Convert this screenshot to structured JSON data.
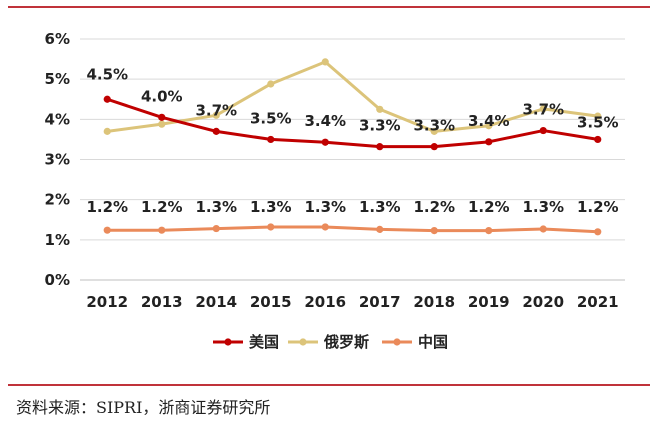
{
  "chart_data": {
    "type": "line",
    "categories": [
      "2012",
      "2013",
      "2014",
      "2015",
      "2016",
      "2017",
      "2018",
      "2019",
      "2020",
      "2021"
    ],
    "ylim": [
      0,
      6
    ],
    "yticks": [
      "0%",
      "1%",
      "2%",
      "3%",
      "4%",
      "5%",
      "6%"
    ],
    "grid": true,
    "legend_position": "bottom",
    "series": [
      {
        "name": "美国",
        "color": "#c00000",
        "values": [
          4.5,
          4.05,
          3.7,
          3.5,
          3.43,
          3.32,
          3.32,
          3.44,
          3.72,
          3.5
        ],
        "labels": [
          "4.5%",
          "4.0%",
          "3.7%",
          "3.5%",
          "3.4%",
          "3.3%",
          "3.3%",
          "3.4%",
          "3.7%",
          "3.5%"
        ]
      },
      {
        "name": "俄罗斯",
        "color": "#dcc47a",
        "values": [
          3.7,
          3.88,
          4.1,
          4.88,
          5.43,
          4.25,
          3.7,
          3.84,
          4.26,
          4.08
        ],
        "labels": []
      },
      {
        "name": "中国",
        "color": "#ea8a5a",
        "values": [
          1.24,
          1.24,
          1.28,
          1.32,
          1.32,
          1.26,
          1.23,
          1.23,
          1.27,
          1.2
        ],
        "labels": [
          "1.2%",
          "1.2%",
          "1.3%",
          "1.3%",
          "1.3%",
          "1.3%",
          "1.2%",
          "1.2%",
          "1.3%",
          "1.2%"
        ]
      }
    ]
  },
  "source": "资料来源：SIPRI，浙商证券研究所"
}
